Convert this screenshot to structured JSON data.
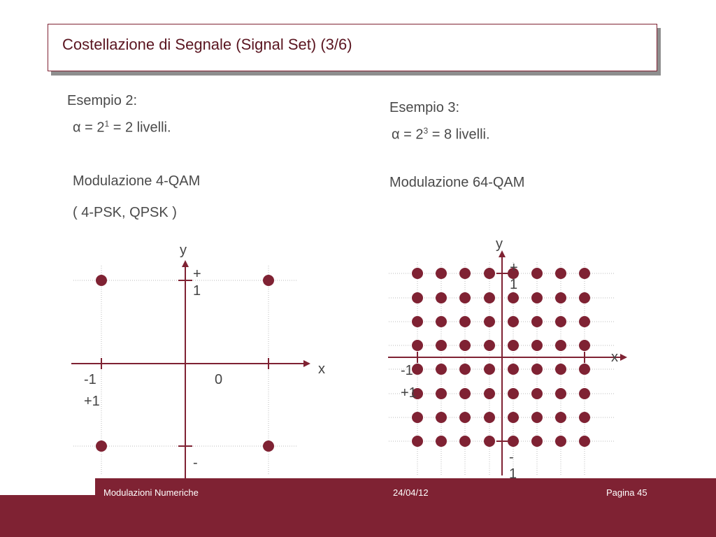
{
  "title": "Costellazione di Segnale (Signal Set)  (3/6)",
  "left": {
    "heading": "Esempio 2:",
    "alpha_symbol": "α",
    "formula_pre": "= 2",
    "formula_sup": "1",
    "formula_post": "= 2 livelli.",
    "modulation": "Modulazione 4-QAM",
    "note": "( 4-PSK,  QPSK )",
    "diagram": {
      "y_label": "y",
      "x_label": "x",
      "top_tick": "+\n1",
      "left_tick": "-1",
      "left_tick2": "+1",
      "center": "0",
      "bottom_tick": "-"
    }
  },
  "right": {
    "heading": "Esempio 3:",
    "alpha_symbol": "α",
    "formula_pre": "= 2",
    "formula_sup": "3",
    "formula_post": "= 8 livelli.",
    "modulation": "Modulazione 64-QAM",
    "diagram": {
      "y_label": "y",
      "x_label": "x",
      "top_tick": "+\n1",
      "left_tick": "-1",
      "left_tick2": "+1",
      "bottom_tick": "-\n1"
    }
  },
  "colors": {
    "accent": "#7f2233",
    "point": "#7f2233"
  },
  "footer": {
    "course": "Modulazioni Numeriche",
    "date": "24/04/12",
    "page": "Pagina 45"
  }
}
